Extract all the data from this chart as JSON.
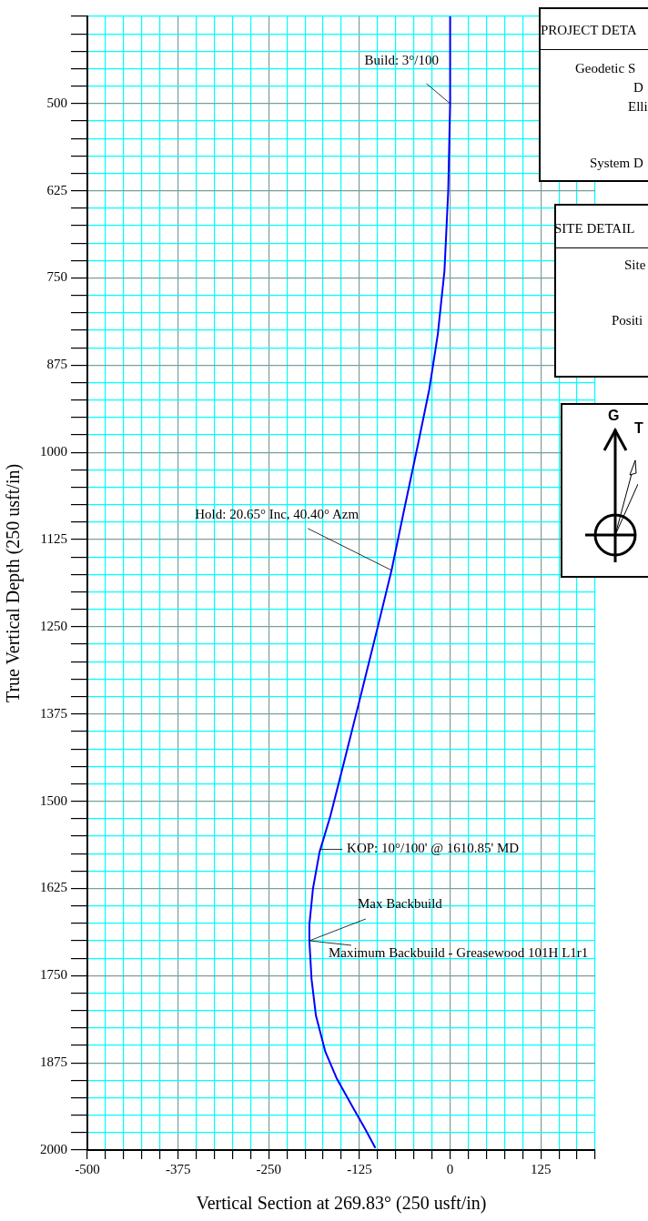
{
  "chart_data": {
    "type": "line",
    "xlabel": "Vertical Section at 269.83° (250 usft/in)",
    "ylabel": "True Vertical Depth (250 usft/in)",
    "x": [
      0,
      0,
      -2.6,
      -7.8,
      -17,
      -28.6,
      -44,
      -62.5,
      -80.7,
      -99,
      -124,
      -146,
      -165,
      -180,
      -189,
      -194,
      -194,
      -191,
      -185,
      -172,
      -156,
      -135,
      -117,
      -103
    ],
    "series": [
      {
        "color": "#0000ff",
        "values": [
          375,
          500,
          625,
          740,
          831,
          909,
          987,
          1078,
          1169,
          1247,
          1352,
          1443,
          1521,
          1573,
          1625,
          1677,
          1700,
          1755,
          1807,
          1859,
          1898,
          1937,
          1970,
          1997
        ]
      }
    ],
    "xlim": [
      -500,
      200
    ],
    "ylim": [
      2000,
      375
    ],
    "xticks": [
      -500,
      {
        "value": -475,
        "label": null
      },
      {
        "value": -450,
        "label": null
      },
      {
        "value": -425,
        "label": null
      },
      {
        "value": -400,
        "label": null
      },
      -375,
      {
        "value": -350,
        "label": null
      },
      {
        "value": -325,
        "label": null
      },
      {
        "value": -300,
        "label": null
      },
      {
        "value": -275,
        "label": null
      },
      -250,
      {
        "value": -225,
        "label": null
      },
      {
        "value": -200,
        "label": null
      },
      {
        "value": -175,
        "label": null
      },
      {
        "value": -150,
        "label": null
      },
      -125,
      {
        "value": -100,
        "label": null
      },
      {
        "value": -75,
        "label": null
      },
      {
        "value": -50,
        "label": null
      },
      {
        "value": -25,
        "label": null
      },
      0,
      {
        "value": 25,
        "label": null
      },
      {
        "value": 50,
        "label": null
      },
      {
        "value": 75,
        "label": null
      },
      {
        "value": 100,
        "label": null
      },
      125,
      {
        "value": 150,
        "label": null
      },
      {
        "value": 175,
        "label": null
      },
      {
        "value": 200,
        "label": null
      }
    ],
    "yticks": [
      {
        "value": 375,
        "label": null
      },
      {
        "value": 400,
        "label": null
      },
      {
        "value": 425,
        "label": null
      },
      {
        "value": 450,
        "label": null
      },
      {
        "value": 475,
        "label": null
      },
      500,
      {
        "value": 525,
        "label": null
      },
      {
        "value": 550,
        "label": null
      },
      {
        "value": 575,
        "label": null
      },
      {
        "value": 600,
        "label": null
      },
      625,
      {
        "value": 650,
        "label": null
      },
      {
        "value": 675,
        "label": null
      },
      {
        "value": 700,
        "label": null
      },
      {
        "value": 725,
        "label": null
      },
      750,
      {
        "value": 775,
        "label": null
      },
      {
        "value": 800,
        "label": null
      },
      {
        "value": 825,
        "label": null
      },
      {
        "value": 850,
        "label": null
      },
      875,
      {
        "value": 900,
        "label": null
      },
      {
        "value": 925,
        "label": null
      },
      {
        "value": 950,
        "label": null
      },
      {
        "value": 975,
        "label": null
      },
      1000,
      {
        "value": 1025,
        "label": null
      },
      {
        "value": 1050,
        "label": null
      },
      {
        "value": 1075,
        "label": null
      },
      {
        "value": 1100,
        "label": null
      },
      1125,
      {
        "value": 1150,
        "label": null
      },
      {
        "value": 1175,
        "label": null
      },
      {
        "value": 1200,
        "label": null
      },
      {
        "value": 1225,
        "label": null
      },
      1250,
      {
        "value": 1275,
        "label": null
      },
      {
        "value": 1300,
        "label": null
      },
      {
        "value": 1325,
        "label": null
      },
      {
        "value": 1350,
        "label": null
      },
      1375,
      {
        "value": 1400,
        "label": null
      },
      {
        "value": 1425,
        "label": null
      },
      {
        "value": 1450,
        "label": null
      },
      {
        "value": 1475,
        "label": null
      },
      1500,
      {
        "value": 1525,
        "label": null
      },
      {
        "value": 1550,
        "label": null
      },
      {
        "value": 1575,
        "label": null
      },
      {
        "value": 1600,
        "label": null
      },
      1625,
      {
        "value": 1650,
        "label": null
      },
      {
        "value": 1675,
        "label": null
      },
      {
        "value": 1700,
        "label": null
      },
      {
        "value": 1725,
        "label": null
      },
      1750,
      {
        "value": 1775,
        "label": null
      },
      {
        "value": 1800,
        "label": null
      },
      {
        "value": 1825,
        "label": null
      },
      {
        "value": 1850,
        "label": null
      },
      1875,
      {
        "value": 1900,
        "label": null
      },
      {
        "value": 1925,
        "label": null
      },
      {
        "value": 1950,
        "label": null
      },
      {
        "value": 1975,
        "label": null
      },
      2000
    ],
    "grid": true,
    "marker": "none",
    "line_style": "solid",
    "annotations": [
      {
        "text": "Build: 3°/100",
        "x": 0,
        "y": 500
      },
      {
        "text": "Hold: 20.65° Inc, 40.40° Azm",
        "x": -80.7,
        "y": 1169
      },
      {
        "text": "KOP: 10°/100' @ 1610.85' MD",
        "x": -180,
        "y": 1569
      },
      {
        "text": "Max Backbuild",
        "x": -194,
        "y": 1700
      },
      {
        "text": "Maximum Backbuild - Greasewood 101H L1r1",
        "x": -194,
        "y": 1700
      },
      "PROJECT DETA",
      "Geodetic S",
      "D",
      "Elli",
      "System D",
      "SITE DETAIL",
      "Site",
      "Positi",
      "G",
      "T"
    ]
  }
}
